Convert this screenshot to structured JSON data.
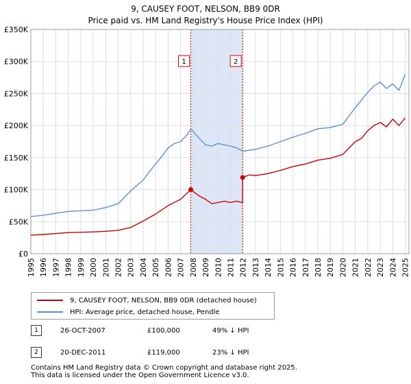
{
  "title_line1": "9, CAUSEY FOOT, NELSON, BB9 0DR",
  "title_line2": "Price paid vs. HM Land Registry's House Price Index (HPI)",
  "legend": {
    "property_label": "9, CAUSEY FOOT, NELSON, BB9 0DR (detached house)",
    "hpi_label": "HPI: Average price, detached house, Pendle"
  },
  "transactions": [
    {
      "num": "1",
      "date": "26-OCT-2007",
      "price": "£100,000",
      "hpi_diff": "49% ↓ HPI"
    },
    {
      "num": "2",
      "date": "20-DEC-2011",
      "price": "£119,000",
      "hpi_diff": "23% ↓ HPI"
    }
  ],
  "footer": {
    "line1": "Contains HM Land Registry data © Crown copyright and database right 2025.",
    "line2": "This data is licensed under the Open Government Licence v3.0."
  },
  "colors": {
    "property": "#cc0000",
    "hpi": "#5b8fd4",
    "shade": "#dde6f7",
    "grid": "#dddddd"
  },
  "chart_data": {
    "type": "line",
    "title": "Price paid vs. HM Land Registry's House Price Index (HPI)",
    "xlabel": "",
    "ylabel": "",
    "xlim": [
      1995,
      2025.3
    ],
    "ylim": [
      0,
      350000
    ],
    "y_ticks": [
      0,
      50000,
      100000,
      150000,
      200000,
      250000,
      300000,
      350000
    ],
    "y_tick_labels": [
      "£0",
      "£50K",
      "£100K",
      "£150K",
      "£200K",
      "£250K",
      "£300K",
      "£350K"
    ],
    "x_ticks": [
      1995,
      1996,
      1997,
      1998,
      1999,
      2000,
      2001,
      2002,
      2003,
      2004,
      2005,
      2006,
      2007,
      2008,
      2009,
      2010,
      2011,
      2012,
      2013,
      2014,
      2015,
      2016,
      2017,
      2018,
      2019,
      2020,
      2021,
      2022,
      2023,
      2024,
      2025
    ],
    "x_tick_labels": [
      "1995",
      "1996",
      "1997",
      "1998",
      "1999",
      "2000",
      "2001",
      "2002",
      "2003",
      "2004",
      "2005",
      "2006",
      "2007",
      "2008",
      "2009",
      "2010",
      "2011",
      "2012",
      "2013",
      "2014",
      "2015",
      "2016",
      "2017",
      "2018",
      "2019",
      "2020",
      "2021",
      "2022",
      "2023",
      "2024",
      "2025"
    ],
    "shaded_region": [
      2007.82,
      2011.97
    ],
    "markers": [
      {
        "label": "1",
        "x": 2007.82,
        "y": 100000
      },
      {
        "label": "2",
        "x": 2011.97,
        "y": 119000
      }
    ],
    "series": [
      {
        "name": "9, CAUSEY FOOT, NELSON, BB9 0DR (detached house)",
        "x": [
          1995.0,
          1996.0,
          1997.0,
          1998.0,
          1999.0,
          2000.0,
          2001.0,
          2002.0,
          2003.0,
          2004.0,
          2005.0,
          2006.0,
          2007.0,
          2007.82,
          2008.5,
          2009.0,
          2009.5,
          2010.0,
          2010.5,
          2011.0,
          2011.5,
          2011.96,
          2011.97,
          2012.5,
          2013.0,
          2014.0,
          2015.0,
          2016.0,
          2017.0,
          2018.0,
          2019.0,
          2020.0,
          2020.5,
          2021.0,
          2021.5,
          2022.0,
          2022.5,
          2023.0,
          2023.5,
          2024.0,
          2024.5,
          2025.0
        ],
        "values": [
          29000,
          30000,
          31500,
          33000,
          33500,
          34000,
          35000,
          36500,
          41000,
          51000,
          62000,
          75000,
          85000,
          100000,
          90000,
          85000,
          78000,
          80000,
          82000,
          80000,
          82000,
          80000,
          119000,
          123000,
          122000,
          125000,
          130000,
          136000,
          140000,
          146000,
          149000,
          155000,
          165000,
          175000,
          180000,
          192000,
          200000,
          205000,
          198000,
          210000,
          200000,
          212000
        ]
      },
      {
        "name": "HPI: Average price, detached house, Pendle",
        "x": [
          1995.0,
          1996.0,
          1997.0,
          1998.0,
          1999.0,
          2000.0,
          2001.0,
          2002.0,
          2003.0,
          2004.0,
          2004.5,
          2005.0,
          2005.5,
          2006.0,
          2006.5,
          2007.0,
          2007.5,
          2007.82,
          2008.5,
          2009.0,
          2009.5,
          2010.0,
          2010.5,
          2011.0,
          2011.5,
          2012.0,
          2013.0,
          2014.0,
          2015.0,
          2016.0,
          2017.0,
          2018.0,
          2019.0,
          2020.0,
          2020.5,
          2021.0,
          2021.5,
          2022.0,
          2022.5,
          2023.0,
          2023.5,
          2024.0,
          2024.5,
          2025.0
        ],
        "values": [
          58000,
          60000,
          63000,
          66000,
          67000,
          68000,
          72000,
          78000,
          98000,
          115000,
          128000,
          140000,
          152000,
          165000,
          172000,
          175000,
          185000,
          195000,
          180000,
          170000,
          168000,
          172000,
          170000,
          168000,
          165000,
          160000,
          163000,
          168000,
          175000,
          182000,
          188000,
          195000,
          197000,
          202000,
          215000,
          228000,
          240000,
          252000,
          262000,
          268000,
          258000,
          265000,
          255000,
          280000
        ]
      }
    ]
  }
}
